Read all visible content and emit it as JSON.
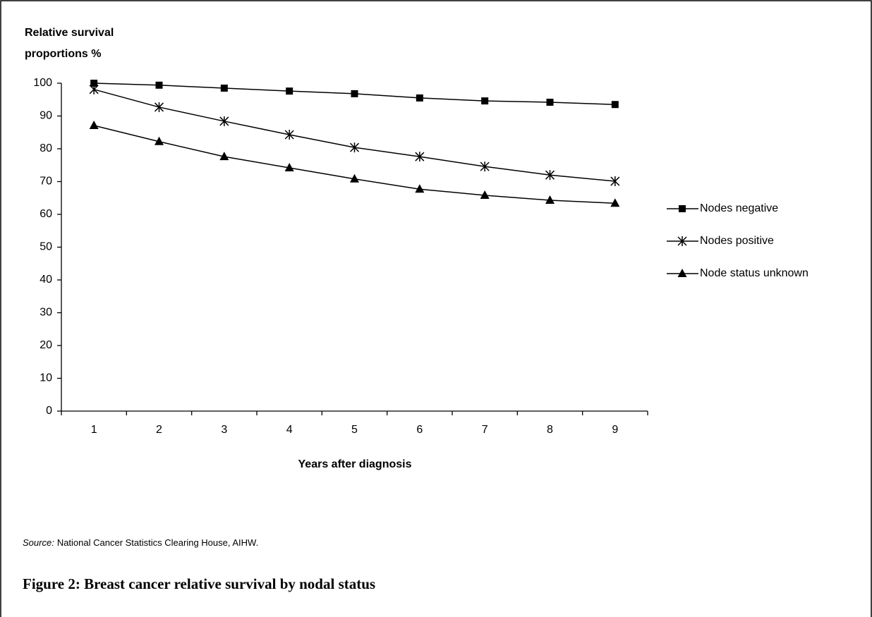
{
  "chart_data": {
    "type": "line",
    "ylabel": [
      "Relative survival",
      "proportions %"
    ],
    "xlabel": "Years after diagnosis",
    "categories": [
      "1",
      "2",
      "3",
      "4",
      "5",
      "6",
      "7",
      "8",
      "9"
    ],
    "series": [
      {
        "name": "Nodes negative",
        "color": "#000000",
        "marker": "square",
        "values": [
          100,
          99.4,
          98.5,
          97.6,
          96.8,
          95.5,
          94.6,
          94.2,
          93.5
        ]
      },
      {
        "name": "Nodes positive",
        "color": "#000000",
        "marker": "star",
        "values": [
          98.1,
          92.7,
          88.4,
          84.3,
          80.4,
          77.6,
          74.6,
          72.0,
          70.1
        ]
      },
      {
        "name": "Node status unknown",
        "color": "#000000",
        "marker": "triangle",
        "values": [
          87.1,
          82.2,
          77.6,
          74.2,
          70.8,
          67.7,
          65.8,
          64.3,
          63.4
        ]
      }
    ],
    "ylim": [
      0,
      100
    ],
    "yticks": [
      0,
      10,
      20,
      30,
      40,
      50,
      60,
      70,
      80,
      90,
      100
    ],
    "grid": false,
    "legend": "right",
    "source_label": "Source:",
    "source": "National Cancer Statistics Clearing House, AIHW.",
    "caption": "Figure 2: Breast cancer relative survival by nodal status"
  }
}
